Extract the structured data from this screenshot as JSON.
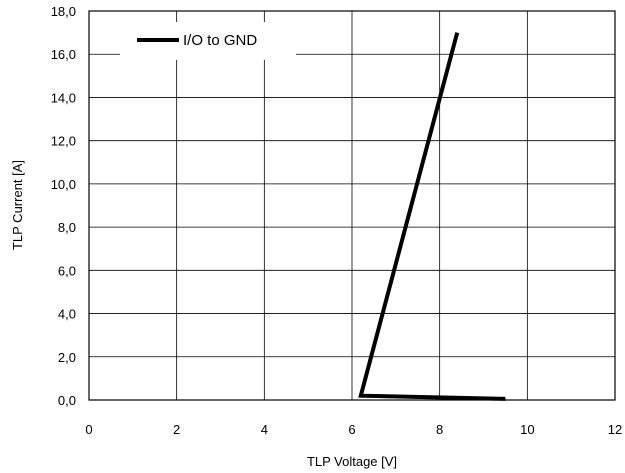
{
  "chart_data": {
    "type": "line",
    "xlabel": "TLP Voltage [V]",
    "ylabel": "TLP Current [A]",
    "xlim": [
      0,
      12
    ],
    "ylim": [
      0,
      18
    ],
    "x_ticks": [
      0,
      2,
      4,
      6,
      8,
      10,
      12
    ],
    "x_tick_labels": [
      "0",
      "2",
      "4",
      "6",
      "8",
      "10",
      "12"
    ],
    "y_ticks": [
      0,
      2,
      4,
      6,
      8,
      10,
      12,
      14,
      16,
      18
    ],
    "y_tick_labels": [
      "0,0",
      "2,0",
      "4,0",
      "6,0",
      "8,0",
      "10,0",
      "12,0",
      "14,0",
      "16,0",
      "18,0"
    ],
    "grid": true,
    "legend_position": "top-left",
    "series": [
      {
        "name": "I/O to GND",
        "color": "#000000",
        "points": [
          {
            "x": 9.5,
            "y": 0.05
          },
          {
            "x": 6.2,
            "y": 0.2
          },
          {
            "x": 8.4,
            "y": 17.0
          }
        ]
      }
    ]
  }
}
